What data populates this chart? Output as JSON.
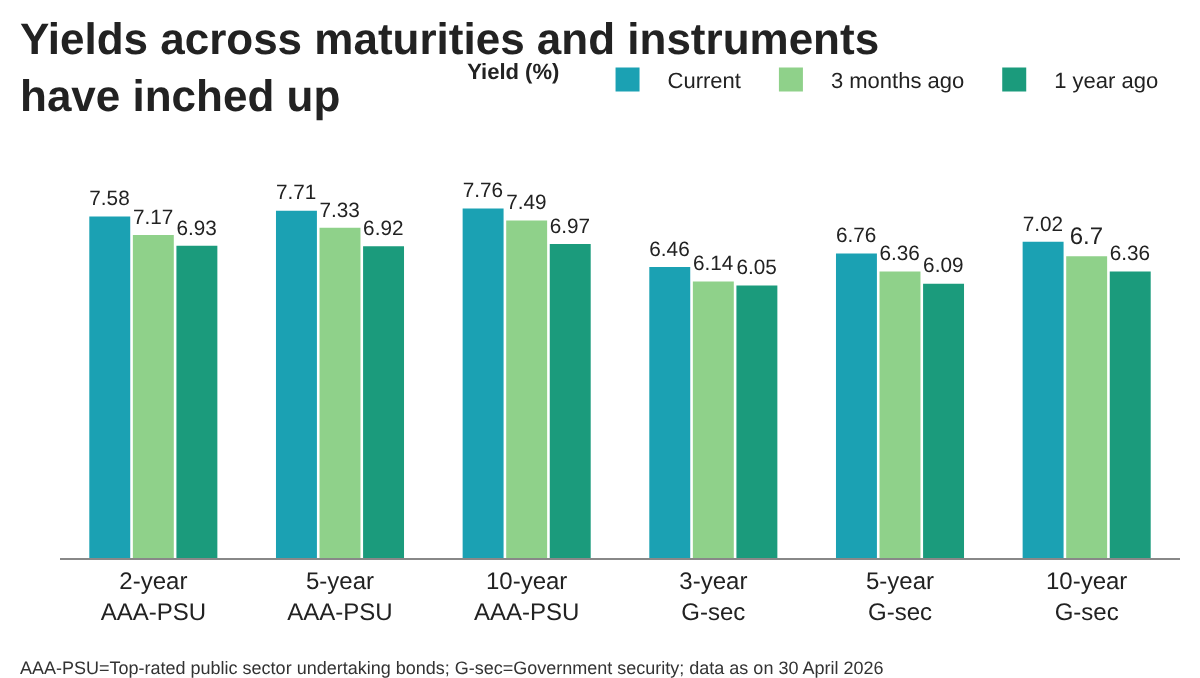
{
  "chart_data": {
    "type": "bar",
    "title": "Yields across maturities and instruments\nhave inched up",
    "legend_title": "Yield (%)",
    "categories": [
      "2-year\nAAA-PSU",
      "5-year\nAAA-PSU",
      "10-year\nAAA-PSU",
      "3-year\nG-sec",
      "5-year\nG-sec",
      "10-year\nG-sec"
    ],
    "series": [
      {
        "name": "Current",
        "color": "#1ba1b3",
        "values": [
          7.58,
          7.71,
          7.76,
          6.46,
          6.76,
          7.02
        ]
      },
      {
        "name": "3 months ago",
        "color": "#8fd18a",
        "values": [
          7.17,
          7.33,
          7.49,
          6.14,
          6.36,
          6.7
        ]
      },
      {
        "name": "1 year ago",
        "color": "#1b9b7c",
        "values": [
          6.93,
          6.92,
          6.97,
          6.05,
          6.09,
          6.36
        ]
      }
    ],
    "data_labels": true,
    "legend": "top right",
    "grid": false,
    "annotations": [
      "AAA-PSU=Top-rated public sector undertaking bonds; G-sec=Government security; data as on 30 April 2026"
    ]
  }
}
